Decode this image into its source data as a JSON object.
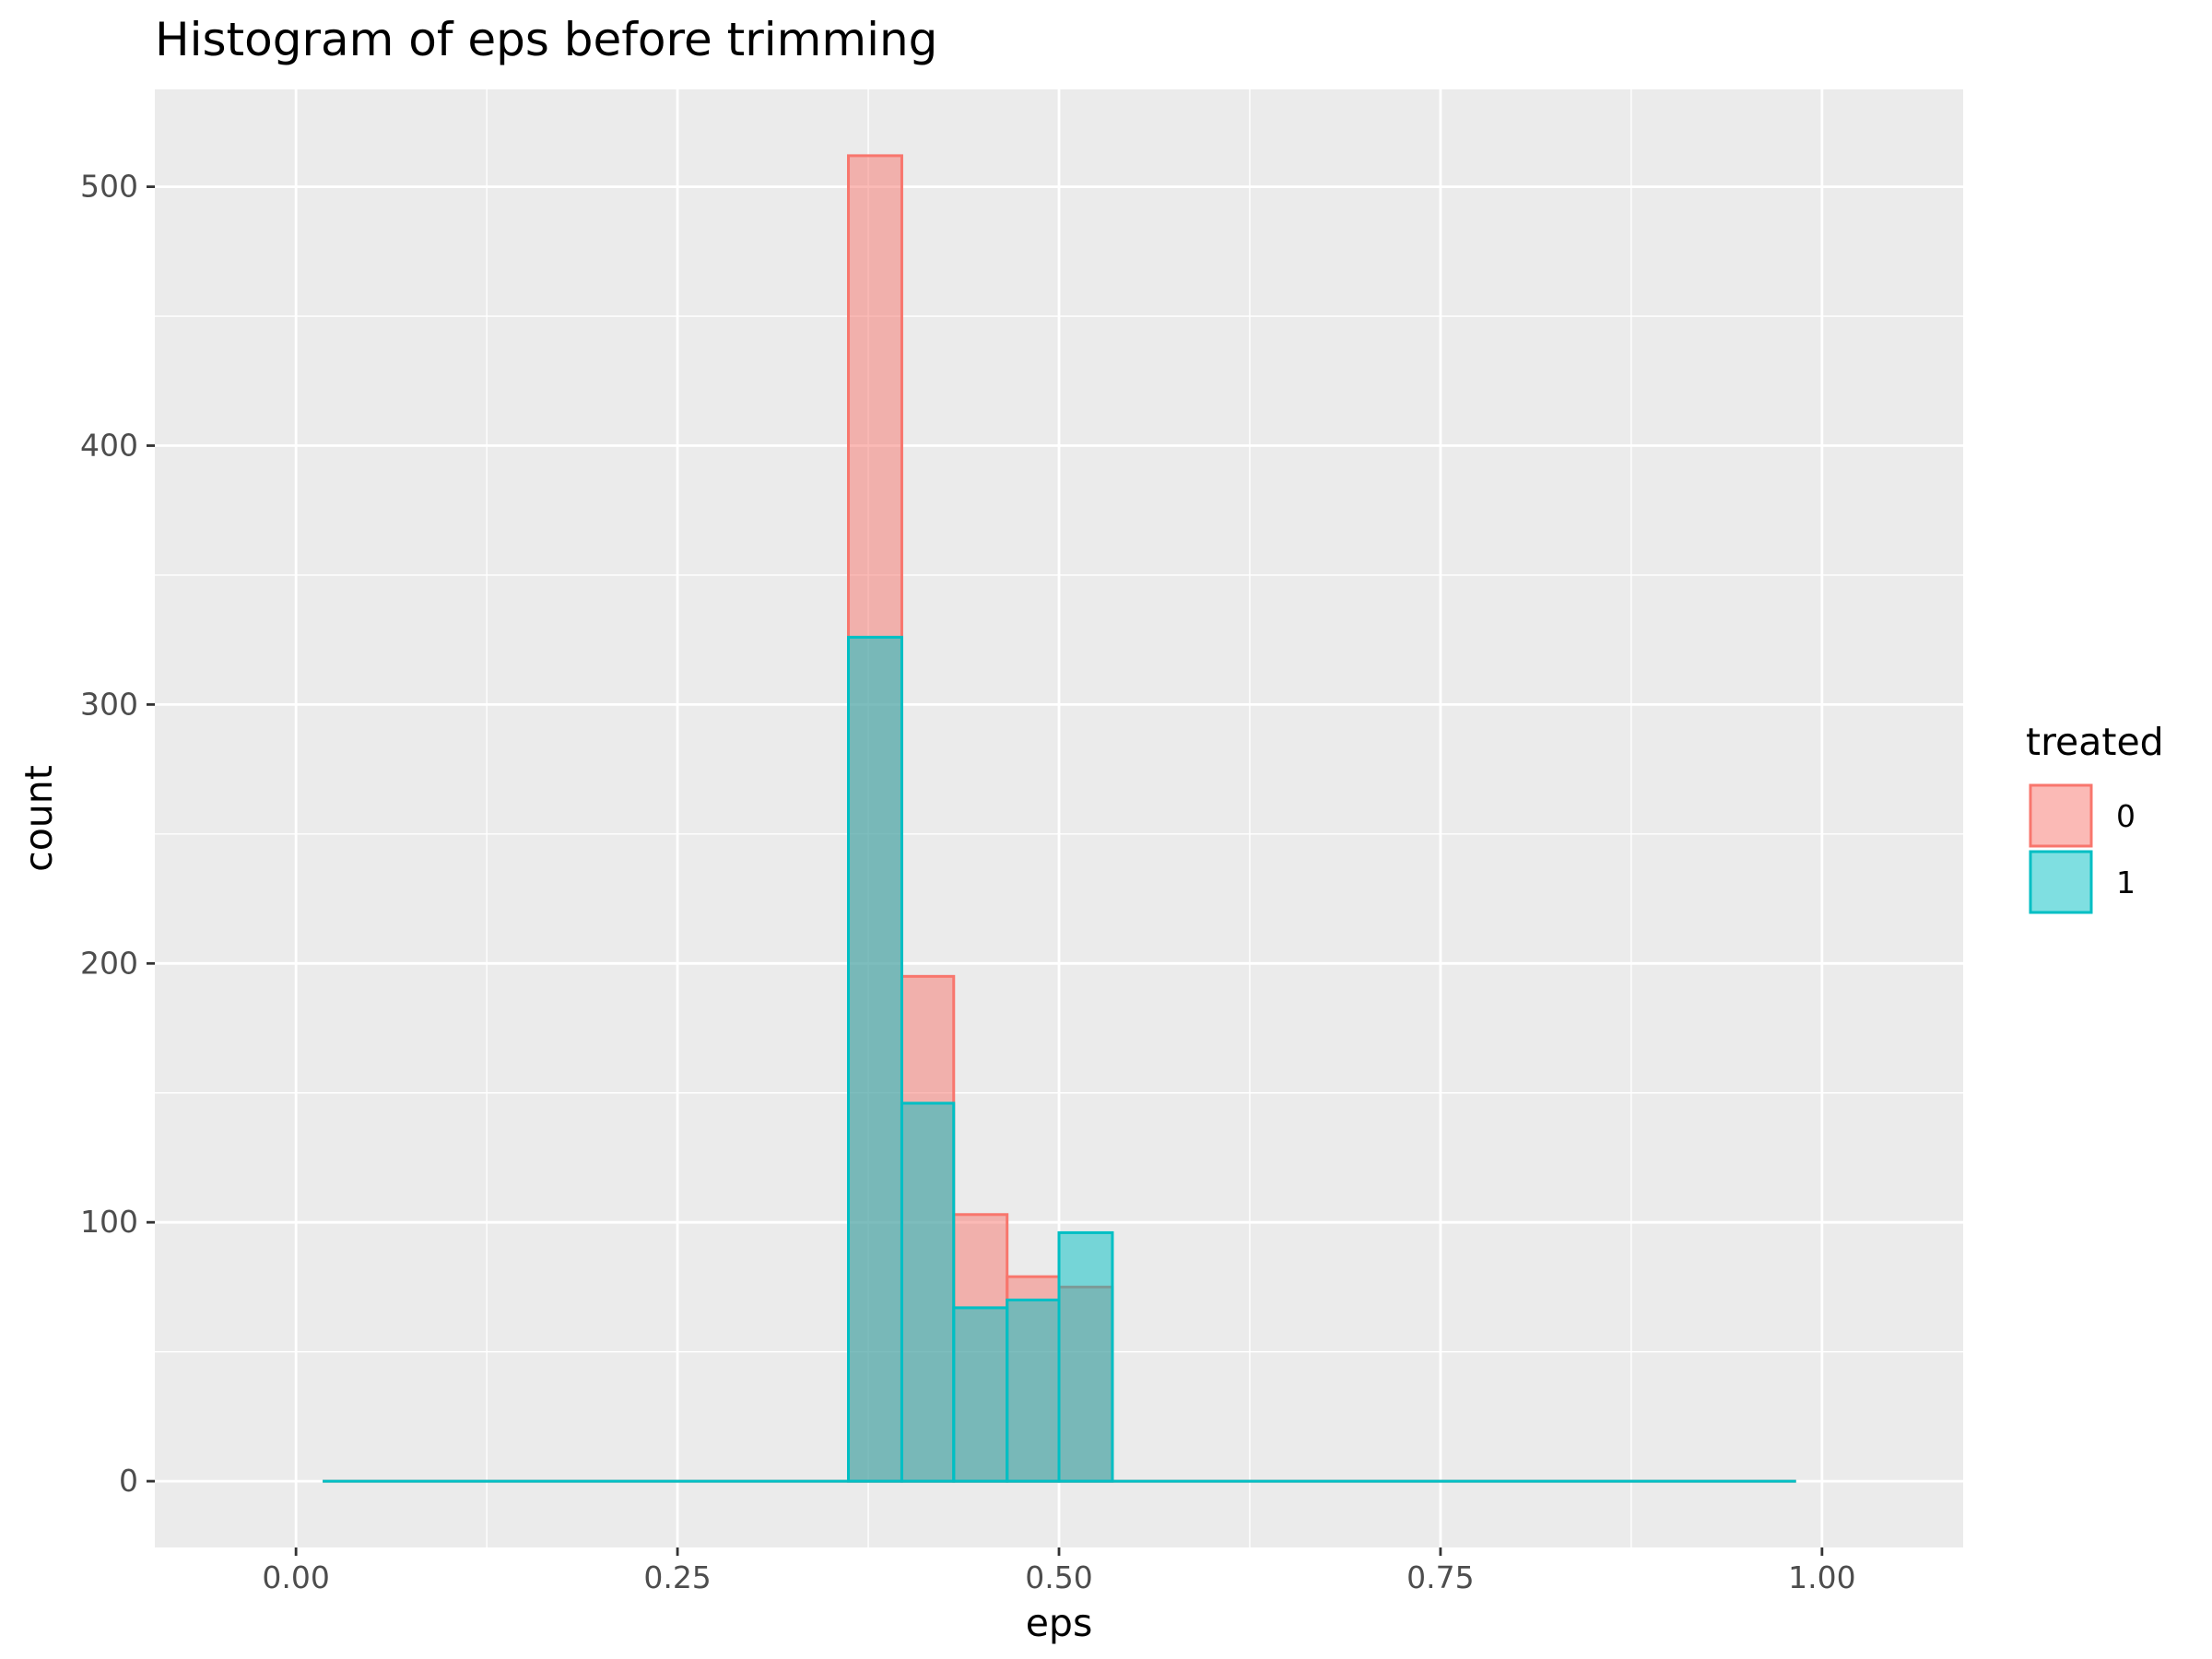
{
  "chart_data": {
    "type": "bar",
    "title": "Histogram of eps before trimming",
    "xlabel": "eps",
    "ylabel": "count",
    "xlim": [
      -0.0925,
      1.0925
    ],
    "ylim": [
      -25.6,
      537.6
    ],
    "x_ticks": [
      {
        "value": 0.0,
        "label": "0.00"
      },
      {
        "value": 0.25,
        "label": "0.25"
      },
      {
        "value": 0.5,
        "label": "0.50"
      },
      {
        "value": 0.75,
        "label": "0.75"
      },
      {
        "value": 1.0,
        "label": "1.00"
      }
    ],
    "y_ticks": [
      {
        "value": 0,
        "label": "0"
      },
      {
        "value": 100,
        "label": "100"
      },
      {
        "value": 200,
        "label": "200"
      },
      {
        "value": 300,
        "label": "300"
      },
      {
        "value": 400,
        "label": "400"
      },
      {
        "value": 500,
        "label": "500"
      }
    ],
    "grid": true,
    "legend_placement": "right",
    "legend_title": "treated",
    "bin_width": 0.0345,
    "x_start": 0.0175,
    "x_end": 0.983,
    "bins": [
      {
        "x_min": 0.362,
        "x_max": 0.397,
        "series0": 512,
        "series1": 326
      },
      {
        "x_min": 0.397,
        "x_max": 0.431,
        "series0": 195,
        "series1": 146
      },
      {
        "x_min": 0.431,
        "x_max": 0.466,
        "series0": 103,
        "series1": 67
      },
      {
        "x_min": 0.466,
        "x_max": 0.5,
        "series0": 79,
        "series1": 70
      },
      {
        "x_min": 0.5,
        "x_max": 0.535,
        "series0": 75,
        "series1": 96
      }
    ],
    "series": [
      {
        "name": "0",
        "fill": "#F8766D",
        "stroke": "#F8766D",
        "fill_opacity": 0.5
      },
      {
        "name": "1",
        "fill": "#00BFC4",
        "stroke": "#00BFC4",
        "fill_opacity": 0.5
      }
    ],
    "colors": {
      "panel": "#EBEBEB",
      "grid": "#FFFFFF",
      "series0": "#F8766D",
      "series1": "#00BFC4"
    }
  }
}
